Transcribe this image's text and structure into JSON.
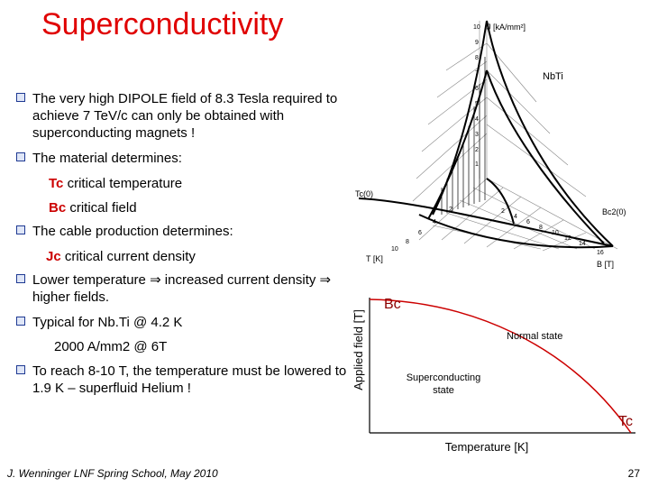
{
  "slide": {
    "title": "Superconductivity",
    "bullets": [
      "The very high DIPOLE field of 8.3 Tesla required to achieve 7 TeV/c can only be obtained with superconducting magnets !",
      "The material determines:",
      "The cable production determines:",
      "Lower temperature ⇒ increased current density ⇒ higher fields.",
      "Typical for Nb.Ti @ 4.2 K",
      "To reach 8-10 T, the temperature must be lowered to 1.9 K – superfluid Helium !"
    ],
    "tc_term": "Tc",
    "tc_desc": "critical temperature",
    "bc_term": "Bc",
    "bc_desc": "critical field",
    "jc_term": "Jc",
    "jc_desc": "critical current density",
    "typical_value": "2000 A/mm2 @ 6T",
    "footer": "J. Wenninger LNF Spring School, May 2010",
    "page_number": "27"
  },
  "surface_plot": {
    "material": "NbTi",
    "j_axis": "J [kA/mm²]",
    "t_axis": "T [K]",
    "b_axis": "B [T]",
    "tc_label": "Tc(0)",
    "bc2_label": "Bc2(0)",
    "j_ticks": [
      "1",
      "2",
      "3",
      "4",
      "5",
      "6",
      "7",
      "8",
      "9",
      "10"
    ],
    "t_ticks": [
      "2",
      "4",
      "6",
      "8",
      "10"
    ],
    "b_ticks": [
      "2",
      "4",
      "6",
      "8",
      "10",
      "12",
      "14",
      "16"
    ]
  },
  "phase_diagram": {
    "bc_label": "Bc",
    "tc_label": "Tc",
    "ylabel": "Applied field [T]",
    "xlabel": "Temperature [K]",
    "normal_state": "Normal state",
    "sc_state": "Superconducting state",
    "colors": {
      "curve": "#cc0000",
      "axis": "#000000"
    }
  }
}
